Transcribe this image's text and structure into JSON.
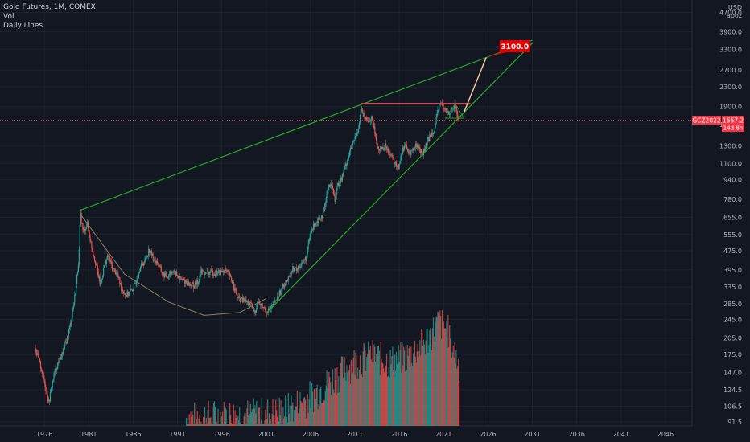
{
  "header": {
    "symbol_line": "Gold Futures, 1M, COMEX",
    "vol_label": "Vol",
    "lines_label": "Daily Lines"
  },
  "corner": {
    "currency": "USD",
    "mode": "apoz"
  },
  "colors": {
    "background": "#131722",
    "up": "#26a69a",
    "down": "#ef5350",
    "trend": "#27a727",
    "resistance": "#f23645",
    "projection": "#ffcc99",
    "arc": "#8a7f6a",
    "axis_text": "#b2b5be"
  },
  "chart_data": {
    "type": "candlestick",
    "title": "Gold Futures, 1M, COMEX",
    "scale": "log",
    "ylim": [
      88,
      5300
    ],
    "xlim": [
      1971,
      2049
    ],
    "y_ticks": [
      "4700.0",
      "3900.0",
      "3300.0",
      "2700.0",
      "2300.0",
      "1900.0",
      "1600.0",
      "1300.0",
      "1100.0",
      "940.0",
      "780.0",
      "655.0",
      "555.0",
      "475.0",
      "395.0",
      "335.0",
      "285.0",
      "245.0",
      "205.0",
      "175.0",
      "147.0",
      "124.5",
      "106.5",
      "91.5"
    ],
    "x_ticks": [
      "1976",
      "1981",
      "1986",
      "1991",
      "1996",
      "2001",
      "2006",
      "2011",
      "2016",
      "2021",
      "2026",
      "2031",
      "2036",
      "2041",
      "2046"
    ],
    "price_path": [
      [
        1975.0,
        185
      ],
      [
        1975.5,
        160
      ],
      [
        1976.0,
        135
      ],
      [
        1976.5,
        110
      ],
      [
        1977.0,
        140
      ],
      [
        1977.5,
        160
      ],
      [
        1978.0,
        175
      ],
      [
        1978.5,
        200
      ],
      [
        1979.0,
        240
      ],
      [
        1979.5,
        320
      ],
      [
        1979.9,
        450
      ],
      [
        1980.05,
        680
      ],
      [
        1980.4,
        560
      ],
      [
        1980.8,
        620
      ],
      [
        1981.3,
        500
      ],
      [
        1981.8,
        420
      ],
      [
        1982.3,
        340
      ],
      [
        1982.8,
        420
      ],
      [
        1983.2,
        450
      ],
      [
        1983.7,
        400
      ],
      [
        1984.2,
        380
      ],
      [
        1984.7,
        330
      ],
      [
        1985.2,
        310
      ],
      [
        1985.7,
        320
      ],
      [
        1986.2,
        340
      ],
      [
        1986.7,
        400
      ],
      [
        1987.3,
        430
      ],
      [
        1987.8,
        480
      ],
      [
        1988.3,
        440
      ],
      [
        1988.8,
        420
      ],
      [
        1989.3,
        380
      ],
      [
        1989.8,
        370
      ],
      [
        1990.3,
        390
      ],
      [
        1990.8,
        380
      ],
      [
        1991.3,
        360
      ],
      [
        1991.8,
        355
      ],
      [
        1992.3,
        345
      ],
      [
        1992.8,
        340
      ],
      [
        1993.3,
        350
      ],
      [
        1993.7,
        390
      ],
      [
        1994.2,
        380
      ],
      [
        1994.8,
        385
      ],
      [
        1995.3,
        385
      ],
      [
        1995.8,
        385
      ],
      [
        1996.3,
        395
      ],
      [
        1996.8,
        375
      ],
      [
        1997.3,
        345
      ],
      [
        1997.8,
        300
      ],
      [
        1998.3,
        295
      ],
      [
        1998.8,
        290
      ],
      [
        1999.3,
        280
      ],
      [
        1999.7,
        260
      ],
      [
        2000.0,
        290
      ],
      [
        2000.5,
        280
      ],
      [
        2001.0,
        265
      ],
      [
        2001.5,
        270
      ],
      [
        2002.0,
        290
      ],
      [
        2002.5,
        315
      ],
      [
        2003.0,
        345
      ],
      [
        2003.5,
        360
      ],
      [
        2004.0,
        400
      ],
      [
        2004.5,
        395
      ],
      [
        2005.0,
        425
      ],
      [
        2005.5,
        440
      ],
      [
        2006.0,
        560
      ],
      [
        2006.5,
        620
      ],
      [
        2007.0,
        650
      ],
      [
        2007.5,
        680
      ],
      [
        2008.0,
        900
      ],
      [
        2008.5,
        880
      ],
      [
        2008.8,
        750
      ],
      [
        2009.0,
        900
      ],
      [
        2009.5,
        950
      ],
      [
        2010.0,
        1100
      ],
      [
        2010.5,
        1250
      ],
      [
        2011.0,
        1400
      ],
      [
        2011.4,
        1550
      ],
      [
        2011.7,
        1880
      ],
      [
        2012.0,
        1700
      ],
      [
        2012.5,
        1650
      ],
      [
        2012.9,
        1700
      ],
      [
        2013.3,
        1450
      ],
      [
        2013.6,
        1250
      ],
      [
        2014.0,
        1280
      ],
      [
        2014.5,
        1300
      ],
      [
        2015.0,
        1200
      ],
      [
        2015.5,
        1100
      ],
      [
        2015.9,
        1060
      ],
      [
        2016.3,
        1250
      ],
      [
        2016.7,
        1330
      ],
      [
        2017.0,
        1200
      ],
      [
        2017.5,
        1250
      ],
      [
        2018.0,
        1320
      ],
      [
        2018.6,
        1200
      ],
      [
        2019.0,
        1300
      ],
      [
        2019.5,
        1450
      ],
      [
        2020.0,
        1550
      ],
      [
        2020.6,
        2000
      ],
      [
        2021.0,
        1850
      ],
      [
        2021.5,
        1800
      ],
      [
        2022.0,
        1850
      ],
      [
        2022.3,
        1950
      ],
      [
        2022.6,
        1700
      ],
      [
        2022.83,
        1667.2
      ]
    ],
    "volume_path": [
      [
        1992.0,
        93
      ],
      [
        1995.0,
        95
      ],
      [
        1998.0,
        96
      ],
      [
        2001.0,
        97
      ],
      [
        2003.0,
        100
      ],
      [
        2005.0,
        108
      ],
      [
        2007.0,
        122
      ],
      [
        2009.0,
        140
      ],
      [
        2011.0,
        160
      ],
      [
        2013.0,
        170
      ],
      [
        2015.0,
        160
      ],
      [
        2017.0,
        170
      ],
      [
        2019.0,
        195
      ],
      [
        2020.5,
        235
      ],
      [
        2021.5,
        215
      ],
      [
        2022.83,
        150
      ]
    ],
    "annotations": {
      "upper_trend": [
        [
          1980.0,
          700
        ],
        [
          2031.0,
          3600
        ]
      ],
      "lower_trend": [
        [
          2001.0,
          260
        ],
        [
          2031.0,
          3500
        ]
      ],
      "resistance": [
        [
          2011.7,
          1960
        ],
        [
          2024.0,
          1960
        ]
      ],
      "projection": [
        [
          2023.3,
          1800
        ],
        [
          2025.8,
          3050
        ]
      ],
      "arc": [
        [
          1980.0,
          680
        ],
        [
          1985.0,
          380
        ],
        [
          1990.0,
          290
        ],
        [
          1994.0,
          255
        ],
        [
          1998.0,
          262
        ],
        [
          2001.0,
          300
        ]
      ],
      "target_label": "3100.0",
      "target_point": [
        2027.3,
        3600
      ],
      "current_symbol": "GCZ2022",
      "current_price": "1667.2",
      "countdown": "14d 8h",
      "current_value": 1667.2
    }
  }
}
